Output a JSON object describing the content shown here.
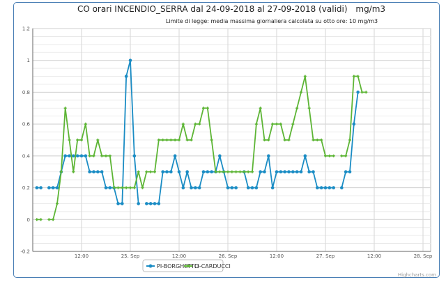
{
  "chart_data": {
    "type": "line",
    "title": "CO orari INCENDIO_SERRA dal 24-09-2018 al 27-09-2018 (validi)",
    "unit": "mg/m3",
    "subtitle": "Limite di legge: media massima giornaliera calcolata su otto ore: 10 mg/m3",
    "xlabel": "",
    "ylabel": "",
    "x_unit": "hours since 24-09-2018 00:00",
    "xlim": [
      0,
      96
    ],
    "ylim": [
      -0.2,
      1.2
    ],
    "y_ticks": [
      -0.2,
      0,
      0.2,
      0.4,
      0.6,
      0.8,
      1,
      1.2
    ],
    "y_tick_labels": [
      "-0.2",
      "0",
      "0.2",
      "0.4",
      "0.6",
      "0.8",
      "1",
      "1.2"
    ],
    "x_ticks": [
      12,
      24,
      36,
      48,
      60,
      72,
      84,
      96
    ],
    "x_tick_labels": [
      "12:00",
      "25. Sep",
      "12:00",
      "26. Sep",
      "12:00",
      "27. Sep",
      "12:00",
      "28. Sep"
    ],
    "grid": true,
    "legend_position": "bottom-center",
    "x_start_hour": 1,
    "series": [
      {
        "name": "PI-BORGHETTO",
        "color": "#1a8cc4",
        "values": [
          0.2,
          0.2,
          null,
          0.2,
          0.2,
          0.2,
          0.3,
          0.4,
          0.4,
          0.4,
          0.4,
          0.4,
          0.4,
          0.3,
          0.3,
          0.3,
          0.3,
          0.2,
          0.2,
          0.2,
          0.1,
          0.1,
          0.9,
          1.0,
          0.4,
          0.1,
          null,
          0.1,
          0.1,
          0.1,
          0.1,
          0.3,
          0.3,
          0.3,
          0.4,
          0.3,
          0.2,
          0.3,
          0.2,
          0.2,
          0.2,
          0.3,
          0.3,
          0.3,
          0.3,
          0.4,
          0.3,
          0.2,
          0.2,
          0.2,
          null,
          0.3,
          0.2,
          0.2,
          0.2,
          0.3,
          0.3,
          0.4,
          0.2,
          0.3,
          0.3,
          0.3,
          0.3,
          0.3,
          0.3,
          0.3,
          0.4,
          0.3,
          0.3,
          0.2,
          0.2,
          0.2,
          0.2,
          0.2,
          null,
          0.2,
          0.3,
          0.3,
          0.6,
          0.8,
          null,
          null
        ]
      },
      {
        "name": "LI-CARDUCCI",
        "color": "#5db535",
        "values": [
          0,
          0,
          null,
          0,
          0,
          0.1,
          0.3,
          0.7,
          0.5,
          0.3,
          0.5,
          0.5,
          0.6,
          0.4,
          0.4,
          0.5,
          0.4,
          0.4,
          0.4,
          0.2,
          0.2,
          0.2,
          0.2,
          0.2,
          0.2,
          0.3,
          0.2,
          0.3,
          0.3,
          0.3,
          0.5,
          0.5,
          0.5,
          0.5,
          0.5,
          0.5,
          0.6,
          0.5,
          0.5,
          0.6,
          0.6,
          0.7,
          0.7,
          0.5,
          0.3,
          0.3,
          0.3,
          0.3,
          0.3,
          0.3,
          0.3,
          0.3,
          0.3,
          0.3,
          0.6,
          0.7,
          0.5,
          0.5,
          0.6,
          0.6,
          0.6,
          0.5,
          0.5,
          0.6,
          0.7,
          0.8,
          0.9,
          0.7,
          0.5,
          0.5,
          0.5,
          0.4,
          0.4,
          0.4,
          null,
          0.4,
          0.4,
          0.5,
          0.9,
          0.9,
          0.8,
          0.8
        ]
      }
    ],
    "credits": "Highcharts.com"
  }
}
